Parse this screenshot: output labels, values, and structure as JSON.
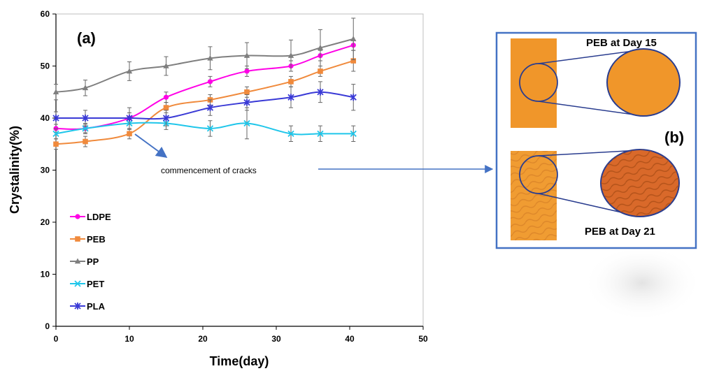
{
  "panel_a_label": "(a)",
  "panel_b_label": "(b)",
  "annotation": "commencement of cracks",
  "photo_top_caption": "PEB at Day 15",
  "photo_bottom_caption": "PEB at Day 21",
  "colors": {
    "LDPE": "#ff00e6",
    "PEB": "#f08a3c",
    "PP": "#7f7f7f",
    "PET": "#1fc6ea",
    "PLA": "#3a3ad6",
    "annotation_arrow": "#4472c4",
    "box_border": "#4472c4",
    "sample": "#f0962a"
  },
  "chart_data": {
    "type": "line",
    "xlabel": "Time(day)",
    "ylabel": "Crystalinity(%)",
    "xlim": [
      0,
      50
    ],
    "ylim": [
      0,
      60
    ],
    "xticks": [
      0,
      10,
      20,
      30,
      40,
      50
    ],
    "yticks": [
      0,
      10,
      20,
      30,
      40,
      50,
      60
    ],
    "grid": false,
    "legend_position": "left-bottom",
    "series": [
      {
        "name": "LDPE",
        "marker": "circle",
        "x": [
          0,
          4,
          10,
          15,
          21,
          26,
          32,
          36,
          40.5
        ],
        "y": [
          38,
          38,
          40,
          44,
          47,
          49,
          50,
          52,
          54
        ],
        "err": [
          0.8,
          0.8,
          1,
          1,
          1,
          1,
          1,
          1,
          1
        ]
      },
      {
        "name": "PEB",
        "marker": "square",
        "x": [
          0,
          4,
          10,
          15,
          21,
          26,
          32,
          36,
          40.5
        ],
        "y": [
          35,
          35.5,
          37,
          42,
          43.5,
          45,
          47,
          49,
          51
        ],
        "err": [
          1,
          1,
          1,
          1,
          1,
          1,
          1,
          1,
          2
        ]
      },
      {
        "name": "PP",
        "marker": "triangle",
        "x": [
          0,
          4,
          10,
          15,
          21,
          26,
          32,
          36,
          40.5
        ],
        "y": [
          45,
          45.8,
          49,
          50,
          51.5,
          52,
          52,
          53.5,
          55.2
        ],
        "err": [
          1.5,
          1.5,
          1.8,
          1.8,
          2.2,
          2.5,
          3,
          3.5,
          4
        ]
      },
      {
        "name": "PET",
        "marker": "x",
        "x": [
          0,
          4,
          10,
          15,
          21,
          26,
          32,
          36,
          40.5
        ],
        "y": [
          37,
          38,
          39,
          39,
          38,
          39,
          37,
          37,
          37
        ],
        "err": [
          1,
          1,
          1.2,
          1.2,
          1.5,
          3,
          1.5,
          1.5,
          1.5
        ]
      },
      {
        "name": "PLA",
        "marker": "star",
        "x": [
          0,
          4,
          10,
          15,
          21,
          26,
          32,
          36,
          40.5
        ],
        "y": [
          40,
          40,
          40,
          40,
          42,
          43,
          44,
          45,
          44
        ],
        "err": [
          1.2,
          1.5,
          2,
          1.5,
          1.5,
          1.5,
          2,
          2,
          2.5
        ]
      }
    ]
  }
}
